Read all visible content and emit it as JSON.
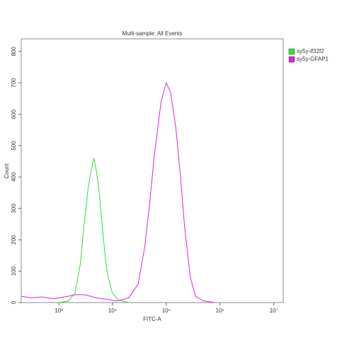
{
  "chart_data": {
    "type": "line",
    "title": "Multi-sample: All Events",
    "xlabel": "FITC-A",
    "ylabel": "Count",
    "xscale": "log",
    "xlim": [
      200,
      15000000
    ],
    "xticks": [
      {
        "value": 1000,
        "label": "10³"
      },
      {
        "value": 10000,
        "label": "10⁴"
      },
      {
        "value": 100000,
        "label": "10⁵"
      },
      {
        "value": 1000000,
        "label": "10⁶"
      },
      {
        "value": 10000000,
        "label": "10⁷"
      }
    ],
    "ylim": [
      0,
      840
    ],
    "yticks": [
      0,
      100,
      200,
      300,
      400,
      500,
      600,
      700,
      800
    ],
    "legend": "right",
    "series": [
      {
        "name": "sy5y-if32f2",
        "color": "#33dd33",
        "x": [
          1000,
          1500,
          2000,
          2500,
          3000,
          3500,
          4000,
          4500,
          5000,
          5500,
          6000,
          7000,
          8000,
          10000,
          13000,
          20000
        ],
        "values": [
          0,
          5,
          30,
          120,
          260,
          360,
          420,
          460,
          420,
          370,
          300,
          180,
          90,
          30,
          8,
          0
        ]
      },
      {
        "name": "sy5y-GFAP1",
        "color": "#dd22dd",
        "x": [
          200,
          300,
          500,
          800,
          1000,
          1500,
          2000,
          3000,
          5000,
          8000,
          12000,
          20000,
          30000,
          40000,
          50000,
          60000,
          70000,
          80000,
          100000,
          120000,
          150000,
          180000,
          220000,
          280000,
          350000,
          500000,
          800000
        ],
        "values": [
          20,
          15,
          18,
          12,
          15,
          20,
          25,
          25,
          15,
          10,
          5,
          15,
          60,
          180,
          330,
          470,
          560,
          640,
          700,
          670,
          560,
          420,
          240,
          80,
          20,
          5,
          0
        ]
      }
    ]
  }
}
